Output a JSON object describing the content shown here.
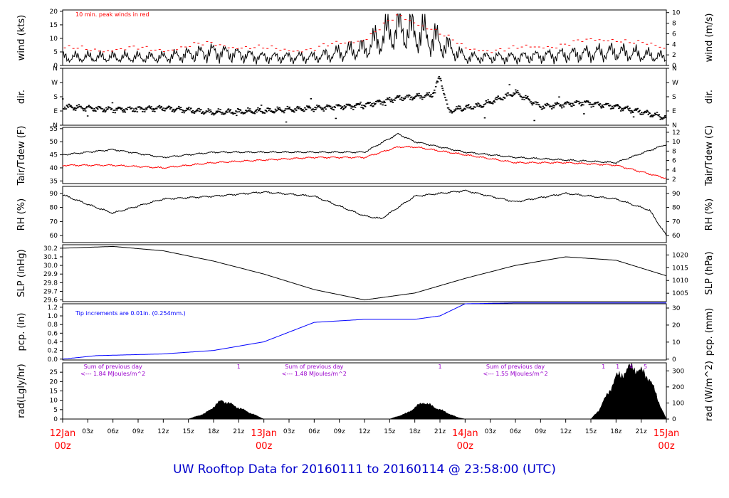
{
  "footer": {
    "title": "UW Rooftop Data for 20160111  to  20160114 @ 23:58:00  (UTC)"
  },
  "time_axis": {
    "ticks": [
      "12Jan",
      "03z",
      "06z",
      "09z",
      "12z",
      "15z",
      "18z",
      "21z",
      "13Jan",
      "03z",
      "06z",
      "09z",
      "12z",
      "15z",
      "18z",
      "21z",
      "14Jan",
      "03z",
      "06z",
      "09z",
      "12z",
      "15z",
      "18z",
      "21z",
      "15Jan"
    ],
    "day_sublabel": "00z"
  },
  "colors": {
    "trace": "#000000",
    "dewpoint": "#ff0000",
    "gust": "#ff0000",
    "precip": "#0000ff",
    "annotation_purple": "#9900cc",
    "day_label": "#ff0000",
    "footer": "#0000cc"
  },
  "panels": {
    "wind": {
      "left_label": "wind (kts)",
      "right_label": "wind (m/s)",
      "left_ticks": [
        "0",
        "5",
        "10",
        "15",
        "20"
      ],
      "right_ticks": [
        "0",
        "2",
        "4",
        "6",
        "8",
        "10"
      ],
      "note": "10 min. peak winds in red"
    },
    "dir": {
      "left_label": "dir.",
      "right_label": "dir.",
      "left_ticks": [
        "N",
        "E",
        "S",
        "W",
        "N"
      ],
      "right_ticks": [
        "N",
        "E",
        "S",
        "W",
        "N"
      ]
    },
    "temp": {
      "left_label": "Tair/Tdew (F)",
      "right_label": "Tair/Tdew (C)",
      "left_ticks": [
        "35",
        "40",
        "45",
        "50",
        "55"
      ],
      "right_ticks": [
        "2",
        "4",
        "6",
        "8",
        "10",
        "12"
      ]
    },
    "rh": {
      "left_label": "RH (%)",
      "right_label": "RH (%)",
      "left_ticks": [
        "60",
        "70",
        "80",
        "90"
      ],
      "right_ticks": [
        "60",
        "70",
        "80",
        "90"
      ]
    },
    "slp": {
      "left_label": "SLP (inHg)",
      "right_label": "SLP (hPa)",
      "left_ticks": [
        "29.6",
        "29.7",
        "29.8",
        "29.9",
        "30.0",
        "30.1",
        "30.2"
      ],
      "right_ticks": [
        "1005",
        "1010",
        "1015",
        "1020"
      ]
    },
    "pcp": {
      "left_label": "pcp. (in)",
      "right_label": "pcp. (mm)",
      "left_ticks": [
        "0.0",
        "0.2",
        "0.4",
        "0.6",
        "0.8",
        "1.0",
        "1.2"
      ],
      "right_ticks": [
        "0",
        "10",
        "20",
        "30"
      ],
      "note": "Tip increments are 0.01in. (0.254mm.)"
    },
    "rad": {
      "left_label": "rad(Lgly/hr)",
      "right_label": "rad (W/m^2)",
      "left_ticks": [
        "0",
        "5",
        "10",
        "15",
        "20",
        "25"
      ],
      "right_ticks": [
        "0",
        "100",
        "200",
        "300"
      ],
      "sums": [
        {
          "line1": "Sum of previous day",
          "line2": "<--- 1.84 MJoules/m^2"
        },
        {
          "line1": "Sum of previous day",
          "line2": "<--- 1.48 MJoules/m^2"
        },
        {
          "line1": "Sum of previous day",
          "line2": "<--- 1.55 MJoules/m^2"
        }
      ],
      "markers": [
        "1",
        "1",
        "1",
        "1",
        "4",
        "5"
      ]
    }
  },
  "chart_data": [
    {
      "type": "line",
      "title": "",
      "ylabel": "wind (kts)",
      "ylim": [
        0,
        20
      ],
      "series": [
        {
          "name": "10 min. peak winds",
          "x_hours": [
            0,
            6,
            12,
            18,
            24,
            30,
            36,
            40,
            44,
            48,
            54,
            60,
            66,
            72
          ],
          "values": [
            6,
            6,
            6,
            8,
            6,
            6,
            10,
            18,
            14,
            6,
            6,
            8,
            10,
            6
          ]
        },
        {
          "name": "",
          "x_hours": [
            0,
            6,
            12,
            18,
            24,
            30,
            36,
            40,
            44,
            48,
            54,
            60,
            66,
            72
          ],
          "values": [
            3,
            3,
            3,
            5,
            3,
            3,
            6,
            14,
            10,
            3,
            3,
            4,
            5,
            3
          ]
        }
      ]
    },
    {
      "type": "scatter",
      "ylabel": "dir.",
      "categories": [
        "N",
        "E",
        "S",
        "W",
        "N"
      ]
    },
    {
      "type": "line",
      "ylabel": "Tair/Tdew (F)",
      "ylim": [
        34,
        55
      ],
      "series": [
        {
          "name": "Tair",
          "x_hours": [
            0,
            6,
            12,
            18,
            24,
            30,
            36,
            40,
            42,
            48,
            54,
            60,
            66,
            72
          ],
          "values": [
            45,
            47,
            44,
            46,
            46,
            46,
            46,
            53,
            50,
            46,
            44,
            43,
            42,
            49
          ]
        },
        {
          "name": "Tdew",
          "x_hours": [
            0,
            6,
            12,
            18,
            24,
            30,
            36,
            40,
            42,
            48,
            54,
            60,
            66,
            72
          ],
          "values": [
            41,
            41,
            40,
            42,
            43,
            44,
            44,
            48,
            48,
            45,
            42,
            42,
            41,
            36
          ]
        }
      ]
    },
    {
      "type": "line",
      "ylabel": "RH (%)",
      "ylim": [
        55,
        95
      ],
      "series": [
        {
          "name": "RH",
          "x_hours": [
            0,
            4,
            6,
            12,
            18,
            24,
            30,
            36,
            38,
            42,
            48,
            54,
            60,
            66,
            70,
            72
          ],
          "values": [
            89,
            80,
            76,
            86,
            88,
            91,
            88,
            74,
            72,
            88,
            92,
            84,
            90,
            86,
            78,
            60
          ]
        }
      ]
    },
    {
      "type": "line",
      "ylabel": "SLP (inHg)",
      "ylim": [
        29.58,
        30.24
      ],
      "series": [
        {
          "name": "SLP",
          "x_hours": [
            0,
            6,
            12,
            18,
            24,
            30,
            36,
            42,
            48,
            54,
            60,
            66,
            72
          ],
          "values": [
            30.2,
            30.22,
            30.17,
            30.05,
            29.9,
            29.72,
            29.6,
            29.68,
            29.85,
            30.0,
            30.1,
            30.06,
            29.88
          ]
        }
      ]
    },
    {
      "type": "line",
      "ylabel": "pcp. (in)",
      "ylim": [
        0,
        1.3
      ],
      "series": [
        {
          "name": "pcp",
          "x_hours": [
            0,
            4,
            12,
            18,
            24,
            30,
            36,
            42,
            45,
            48,
            54,
            60,
            72
          ],
          "values": [
            0.0,
            0.08,
            0.12,
            0.2,
            0.4,
            0.85,
            0.92,
            0.92,
            1.0,
            1.28,
            1.3,
            1.3,
            1.3
          ]
        }
      ]
    },
    {
      "type": "area",
      "ylabel": "rad(Lgly/hr)",
      "ylim": [
        0,
        30
      ],
      "series": [
        {
          "name": "rad",
          "x_hours": [
            0,
            15,
            17,
            19,
            21,
            23,
            24,
            39,
            41,
            43,
            45,
            47,
            48,
            63,
            64,
            66,
            68,
            70,
            71,
            72
          ],
          "values": [
            0,
            0,
            3,
            10,
            6,
            2,
            0,
            0,
            3,
            9,
            5,
            1,
            0,
            0,
            5,
            22,
            28,
            22,
            10,
            0
          ]
        }
      ]
    }
  ]
}
